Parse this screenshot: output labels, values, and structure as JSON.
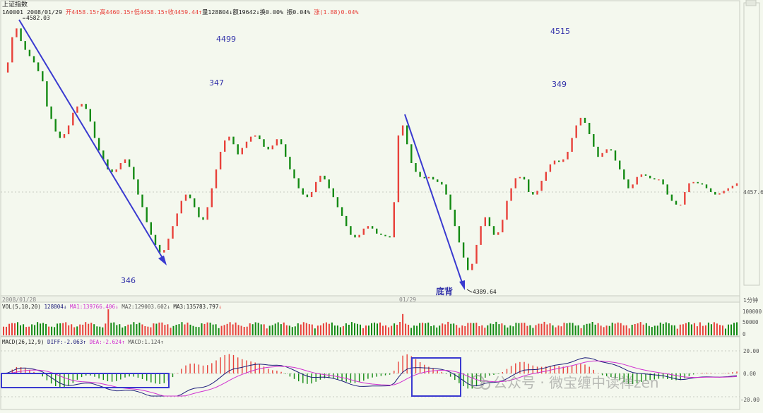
{
  "header": {
    "title": "上证指数",
    "code": "1A0001",
    "date": "2008/01/29",
    "open_label": "开",
    "open": "4458.15",
    "high_label": "高",
    "high": "4460.15",
    "low_label": "低",
    "low": "4458.15",
    "close_label": "收",
    "close": "4459.44",
    "vol_label": "量",
    "vol": "128804",
    "amount_label": "额",
    "amount": "19642",
    "turnover_label": "换",
    "turnover": "0.00%",
    "amplitude_label": "振",
    "amplitude": "0.04%",
    "change_label": "涨",
    "change": "(1.88)",
    "change_pct": "0.04%"
  },
  "annotations": {
    "n4499": "4499",
    "n347": "347",
    "n346": "346",
    "n4515": "4515",
    "n349": "349",
    "divergence": "底背",
    "high_mark": "4582.03",
    "low_mark": "4389.64",
    "price_tag": "4457.6"
  },
  "date_bar": {
    "left": "2008/01/28",
    "mid": "01/29",
    "period": "1分钟"
  },
  "vol_legend": {
    "name": "VOL(5,10,20)",
    "vol": "128804",
    "ma1": "MA1:139766.406",
    "ma2": "MA2:129003.602",
    "ma3": "MA3:135783.797"
  },
  "vol_axis": [
    "100000",
    "50000",
    "0"
  ],
  "macd_legend": {
    "name": "MACD(26,12,9)",
    "diff": "DIFF:-2.063",
    "dea": "DEA:-2.624",
    "macd": "MACD:1.124"
  },
  "macd_axis": [
    "20.00",
    "0.00",
    "-20.00"
  ],
  "watermark": "公众号 · 微宝缠中读禅zen",
  "colors": {
    "up": "#e8413a",
    "down": "#138a13",
    "arrow": "#3a3ad0",
    "label": "#2f2fa8",
    "diff": "#1c1c7a",
    "dea": "#d030d0",
    "bg": "#f4f8ee",
    "grid": "#c8ccc2"
  },
  "chart_data": {
    "type": "candlestick",
    "title": "上证指数 1分钟",
    "ylim": [
      4380,
      4590
    ],
    "price_series": [
      4547,
      4555,
      4575,
      4582,
      4572,
      4565,
      4560,
      4555,
      4548,
      4540,
      4520,
      4510,
      4500,
      4495,
      4498,
      4505,
      4515,
      4520,
      4522,
      4518,
      4508,
      4495,
      4485,
      4478,
      4470,
      4468,
      4470,
      4475,
      4478,
      4472,
      4462,
      4450,
      4440,
      4428,
      4418,
      4410,
      4404,
      4406,
      4415,
      4425,
      4435,
      4445,
      4450,
      4447,
      4440,
      4432,
      4430,
      4440,
      4455,
      4470,
      4484,
      4493,
      4496,
      4490,
      4482,
      4487,
      4492,
      4496,
      4497,
      4494,
      4488,
      4486,
      4489,
      4494,
      4490,
      4480,
      4470,
      4463,
      4455,
      4450,
      4448,
      4452,
      4460,
      4465,
      4462,
      4455,
      4448,
      4440,
      4433,
      4425,
      4418,
      4416,
      4418,
      4423,
      4425,
      4423,
      4419,
      4418,
      4417,
      4416,
      4444,
      4497,
      4505,
      4490,
      4475,
      4468,
      4464,
      4463,
      4464,
      4462,
      4460,
      4458,
      4450,
      4438,
      4425,
      4412,
      4400,
      4390,
      4395,
      4410,
      4425,
      4432,
      4425,
      4418,
      4420,
      4430,
      4445,
      4455,
      4463,
      4464,
      4462,
      4452,
      4450,
      4453,
      4461,
      4468,
      4474,
      4477,
      4476,
      4478,
      4484,
      4495,
      4505,
      4511,
      4507,
      4498,
      4488,
      4480,
      4483,
      4486,
      4485,
      4477,
      4470,
      4462,
      4455,
      4458,
      4464,
      4466,
      4465,
      4463,
      4462,
      4462,
      4458,
      4450,
      4445,
      4442,
      4442,
      4452,
      4459,
      4460,
      4459,
      4458,
      4455,
      4452,
      4450,
      4451,
      4453,
      4455,
      4457,
      4459
    ],
    "price_labels": {
      "high": 4582.03,
      "low": 4389.64,
      "last": 4457.6
    },
    "volume_ylim": [
      0,
      130000
    ],
    "macd_ylim": [
      -24,
      24
    ]
  }
}
